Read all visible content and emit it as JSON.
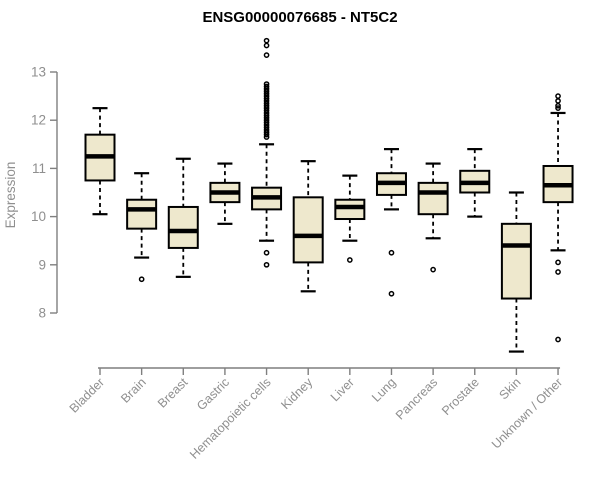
{
  "chart_data": {
    "type": "boxplot",
    "title": "ENSG00000076685 - NT5C2",
    "ylabel": "Expression",
    "xlabel": "",
    "ylim": [
      8,
      13
    ],
    "yticks": [
      8,
      9,
      10,
      11,
      12,
      13
    ],
    "grid": false,
    "legend": "none",
    "categories": [
      "Bladder",
      "Brain",
      "Breast",
      "Gastric",
      "Hematopoietic cells",
      "Kidney",
      "Liver",
      "Lung",
      "Pancreas",
      "Prostate",
      "Skin",
      "Unknown / Other"
    ],
    "series": [
      {
        "category": "Bladder",
        "whisker_low": 10.05,
        "q1": 10.75,
        "median": 11.25,
        "q3": 11.7,
        "whisker_high": 12.25,
        "outliers": []
      },
      {
        "category": "Brain",
        "whisker_low": 9.15,
        "q1": 9.75,
        "median": 10.15,
        "q3": 10.35,
        "whisker_high": 10.9,
        "outliers": [
          8.7
        ]
      },
      {
        "category": "Breast",
        "whisker_low": 8.75,
        "q1": 9.35,
        "median": 9.7,
        "q3": 10.2,
        "whisker_high": 11.2,
        "outliers": []
      },
      {
        "category": "Gastric",
        "whisker_low": 9.85,
        "q1": 10.3,
        "median": 10.5,
        "q3": 10.7,
        "whisker_high": 11.1,
        "outliers": []
      },
      {
        "category": "Hematopoietic cells",
        "whisker_low": 9.5,
        "q1": 10.15,
        "median": 10.4,
        "q3": 10.6,
        "whisker_high": 11.5,
        "outliers": [
          9.0,
          9.25,
          11.65,
          11.7,
          11.75,
          11.8,
          11.85,
          11.9,
          11.95,
          12.0,
          12.05,
          12.1,
          12.15,
          12.2,
          12.25,
          12.3,
          12.35,
          12.4,
          12.45,
          12.5,
          12.55,
          12.6,
          12.65,
          12.7,
          12.75,
          13.35,
          13.55,
          13.65
        ]
      },
      {
        "category": "Kidney",
        "whisker_low": 8.45,
        "q1": 9.05,
        "median": 9.6,
        "q3": 10.4,
        "whisker_high": 11.15,
        "outliers": []
      },
      {
        "category": "Liver",
        "whisker_low": 9.5,
        "q1": 9.95,
        "median": 10.2,
        "q3": 10.35,
        "whisker_high": 10.85,
        "outliers": [
          9.1
        ]
      },
      {
        "category": "Lung",
        "whisker_low": 10.15,
        "q1": 10.45,
        "median": 10.7,
        "q3": 10.9,
        "whisker_high": 11.4,
        "outliers": [
          9.25,
          8.4
        ]
      },
      {
        "category": "Pancreas",
        "whisker_low": 9.55,
        "q1": 10.05,
        "median": 10.5,
        "q3": 10.7,
        "whisker_high": 11.1,
        "outliers": [
          8.9
        ]
      },
      {
        "category": "Prostate",
        "whisker_low": 10.0,
        "q1": 10.5,
        "median": 10.7,
        "q3": 10.95,
        "whisker_high": 11.4,
        "outliers": []
      },
      {
        "category": "Skin",
        "whisker_low": 7.2,
        "q1": 8.3,
        "median": 9.4,
        "q3": 9.85,
        "whisker_high": 10.5,
        "outliers": []
      },
      {
        "category": "Unknown / Other",
        "whisker_low": 9.3,
        "q1": 10.3,
        "median": 10.65,
        "q3": 11.05,
        "whisker_high": 12.15,
        "outliers": [
          12.25,
          12.3,
          12.4,
          12.5,
          9.05,
          8.85,
          7.45
        ]
      }
    ],
    "colors": {
      "box_fill": "#EEE8CD",
      "box_border": "#000000",
      "median": "#000000",
      "whisker": "#000000",
      "outlier": "#000000",
      "axis": "#7f7f7f",
      "tick_label": "#8f8f8f",
      "title": "#000000",
      "background": "#ffffff"
    }
  }
}
